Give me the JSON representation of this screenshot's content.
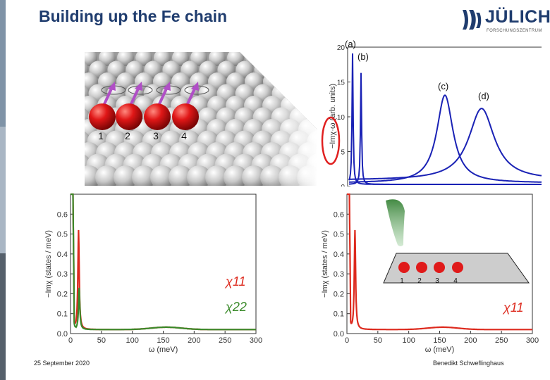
{
  "slide": {
    "title": "Building up the Fe chain",
    "date": "25 September 2020",
    "author": "Benedikt Schweflinghaus",
    "logo": {
      "word": "JÜLICH",
      "subtitle": "FORSCHUNGSZENTRUM",
      "icon": "juelich-logo-icon"
    }
  },
  "atoms_image": {
    "labels": [
      "1",
      "2",
      "3",
      "4"
    ],
    "atom_color": "#d8141a",
    "spin_arrow_color": "#b04fc6"
  },
  "chart_data": [
    {
      "type": "line",
      "ylabel": "−Imχ·ω (arb. units)",
      "ylim": [
        0,
        20
      ],
      "yticks": [
        0,
        5,
        10,
        15,
        20
      ],
      "panel_labels": [
        "(a)",
        "(b)",
        "(c)",
        "(d)"
      ],
      "series_color": "#1a22b5",
      "highlight_color": "#e02020"
    },
    {
      "type": "line",
      "xlabel": "ω (meV)",
      "ylabel": "−Imχ (states / meV)",
      "xlim": [
        0,
        300
      ],
      "ylim": [
        0,
        0.7
      ],
      "xticks": [
        0,
        50,
        100,
        150,
        200,
        250,
        300
      ],
      "yticks": [
        "0.0",
        "0.1",
        "0.2",
        "0.3",
        "0.4",
        "0.5",
        "0.6"
      ],
      "series": [
        {
          "name": "χ11",
          "color": "#dd2a1e",
          "peak_x": 13,
          "peak_y": 0.5
        },
        {
          "name": "χ22",
          "color": "#3a8a2a",
          "peak_x": 14,
          "peak_y": 0.21
        }
      ]
    },
    {
      "type": "line",
      "xlabel": "ω (meV)",
      "ylabel": "−Imχ (states / meV)",
      "xlim": [
        0,
        300
      ],
      "ylim": [
        0,
        0.7
      ],
      "xticks": [
        0,
        50,
        100,
        150,
        200,
        250,
        300
      ],
      "yticks": [
        "0.0",
        "0.1",
        "0.2",
        "0.3",
        "0.4",
        "0.5",
        "0.6"
      ],
      "series": [
        {
          "name": "χ11",
          "color": "#dd2a1e",
          "peak_x": 13,
          "peak_y": 0.5
        }
      ],
      "inset_labels": [
        "1",
        "2",
        "3",
        "4"
      ]
    }
  ]
}
